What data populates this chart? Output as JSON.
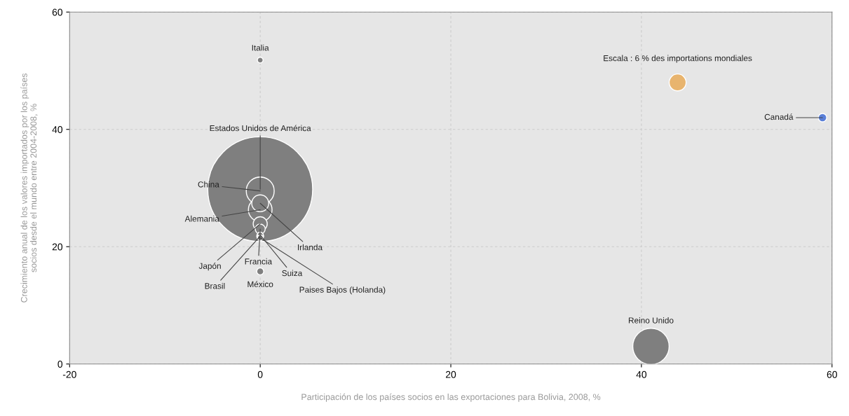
{
  "chart_data": {
    "type": "bubble",
    "xlabel": "Participación de los países socios en las exportaciones para Bolivia, 2008, %",
    "ylabel": "Crecimiento anual de los valores importados por los países\nsocios desde el mundo entre 2004-2008, %",
    "xlim": [
      -20,
      60
    ],
    "xticks": [
      -20,
      0,
      20,
      40,
      60
    ],
    "ylim": [
      0,
      60
    ],
    "yticks": [
      0,
      20,
      40,
      60
    ],
    "grid": true,
    "series": [
      {
        "x": [
          0,
          0,
          0,
          0,
          0,
          0,
          0,
          0,
          0,
          0,
          0,
          41,
          59
        ],
        "values": [
          29.8,
          29.5,
          26.3,
          27.4,
          23.9,
          23,
          21.8,
          22,
          21.5,
          15.8,
          51.8,
          3,
          42
        ],
        "sizes": [
          1,
          0.071,
          0.051,
          0.026,
          0.018,
          0.009,
          0.0044,
          0.003,
          0.003,
          0.0044,
          0.003,
          0.12,
          0.0064
        ],
        "colors": [
          "#7f7f7f",
          "#7f7f7f",
          "#7f7f7f",
          "#7f7f7f",
          "#7f7f7f",
          "#7f7f7f",
          "#7f7f7f",
          "#7f7f7f",
          "#7f7f7f",
          "#7f7f7f",
          "#7f7f7f",
          "#7f7f7f",
          "#5b80d8"
        ]
      },
      {
        "name": "Escala : 6 % des importations mondiales",
        "x": [
          43.8
        ],
        "values": [
          48
        ],
        "sizes": [
          0.026
        ],
        "colors": [
          "#e8b46e"
        ]
      }
    ],
    "annotations": [
      {
        "text": "Estados Unidos de América",
        "x": 0,
        "y": 29.8
      },
      {
        "text": "China",
        "x": 0,
        "y": 29.5
      },
      {
        "text": "Alemania",
        "x": 0,
        "y": 26.3
      },
      {
        "text": "Irlanda",
        "x": 0,
        "y": 27.4
      },
      {
        "text": "Japón",
        "x": 0,
        "y": 23.9
      },
      {
        "text": "Francia",
        "x": 0,
        "y": 23
      },
      {
        "text": "Brasil",
        "x": 0,
        "y": 21.8
      },
      {
        "text": "Suiza",
        "x": 0,
        "y": 22
      },
      {
        "text": "Paises Bajos (Holanda)",
        "x": 0,
        "y": 21.5
      },
      {
        "text": "México",
        "x": 0,
        "y": 15.8
      },
      {
        "text": "Italia",
        "x": 0,
        "y": 51.8
      },
      {
        "text": "Reino Unido",
        "x": 41,
        "y": 3
      },
      {
        "text": "Canadá",
        "x": 59,
        "y": 42
      }
    ]
  }
}
